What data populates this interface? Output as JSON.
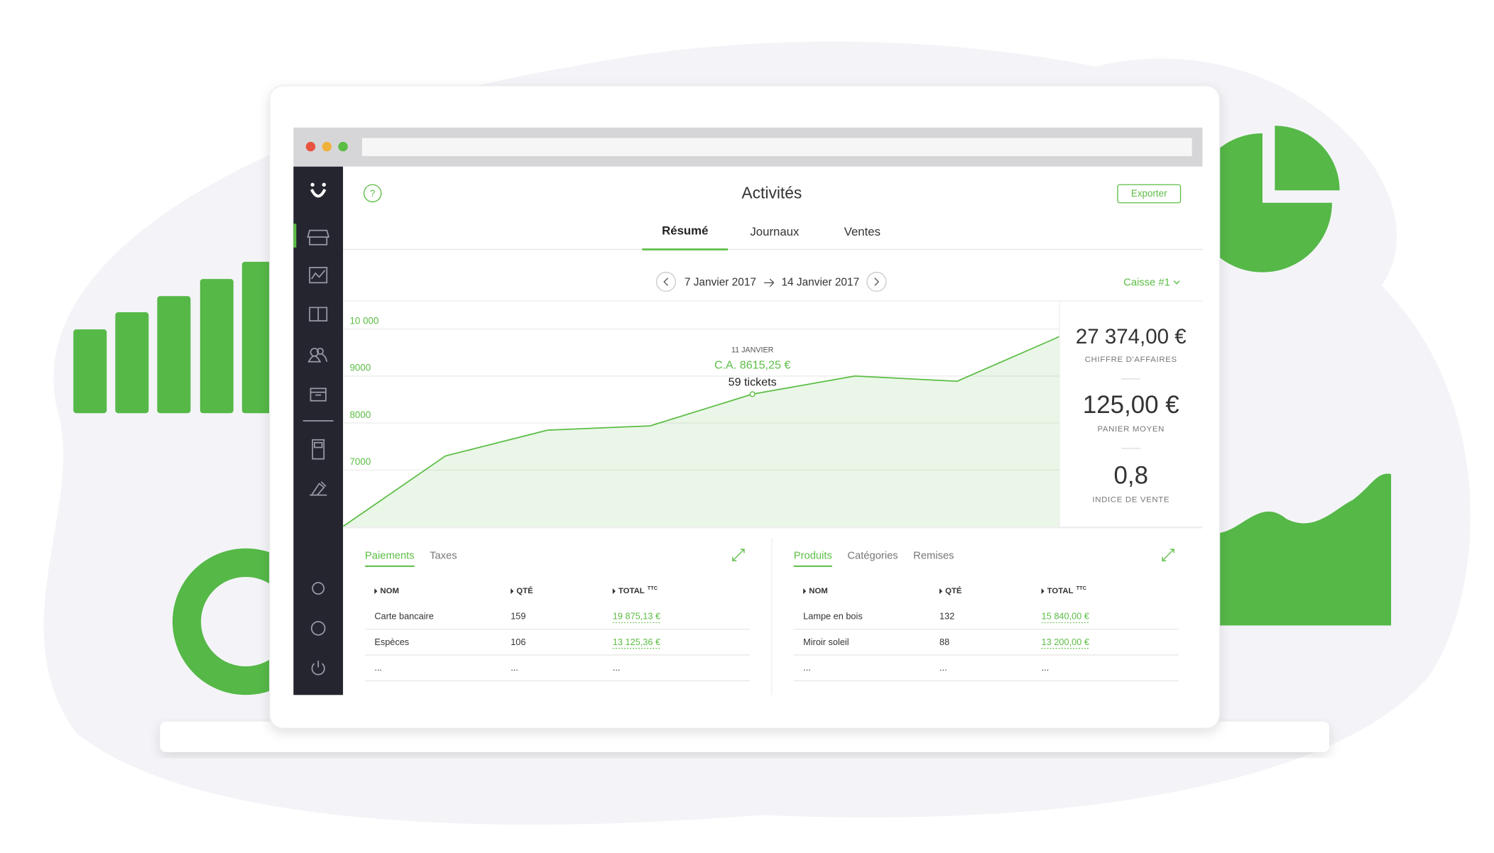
{
  "page": {
    "title": "Activités",
    "export_button": "Exporter",
    "tabs": [
      "Résumé",
      "Journaux",
      "Ventes"
    ],
    "date_start": "7 Janvier 2017",
    "date_end": "14 Janvier 2017",
    "register": "Caisse #1"
  },
  "chart": {
    "type": "line",
    "categories": [
      null,
      null,
      null,
      null,
      "11 JANVIER",
      null,
      null,
      null
    ],
    "values": [
      5800,
      7300,
      7850,
      7940,
      8615.25,
      9000,
      8890,
      9840
    ],
    "ylim": [
      5800,
      10600
    ],
    "yticks": [
      {
        "value": 10000,
        "label": "10 000"
      },
      9000,
      8000,
      7000
    ],
    "color": "#5bbd45",
    "grid": true,
    "tooltip_revenue": "C.A. 8615,25 €",
    "tooltip_tickets": "59 tickets"
  },
  "kpis": [
    {
      "value": "27 374,00 €",
      "label": "CHIFFRE D'AFFAIRES"
    },
    {
      "value": "125,00 €",
      "label": "PANIER MOYEN"
    },
    {
      "value": "0,8",
      "label": "INDICE DE VENTE"
    }
  ],
  "payments": {
    "tabs": [
      "Paiements",
      "Taxes"
    ],
    "columns": [
      "NOM",
      "QTÉ",
      "TOTAL"
    ],
    "total_sup": "TTC",
    "rows": [
      [
        "Carte bancaire",
        "159",
        "19 875,13 €"
      ],
      [
        "Espèces",
        "106",
        "13 125,36 €"
      ],
      [
        "...",
        "...",
        "..."
      ]
    ]
  },
  "products": {
    "tabs": [
      "Produits",
      "Catégories",
      "Remises"
    ],
    "columns": [
      "NOM",
      "QTÉ",
      "TOTAL"
    ],
    "total_sup": "TTC",
    "rows": [
      [
        "Lampe en bois",
        "132",
        "15 840,00 €"
      ],
      [
        "Miroir soleil",
        "88",
        "13 200,00 €"
      ],
      [
        "...",
        "...",
        "..."
      ]
    ]
  }
}
